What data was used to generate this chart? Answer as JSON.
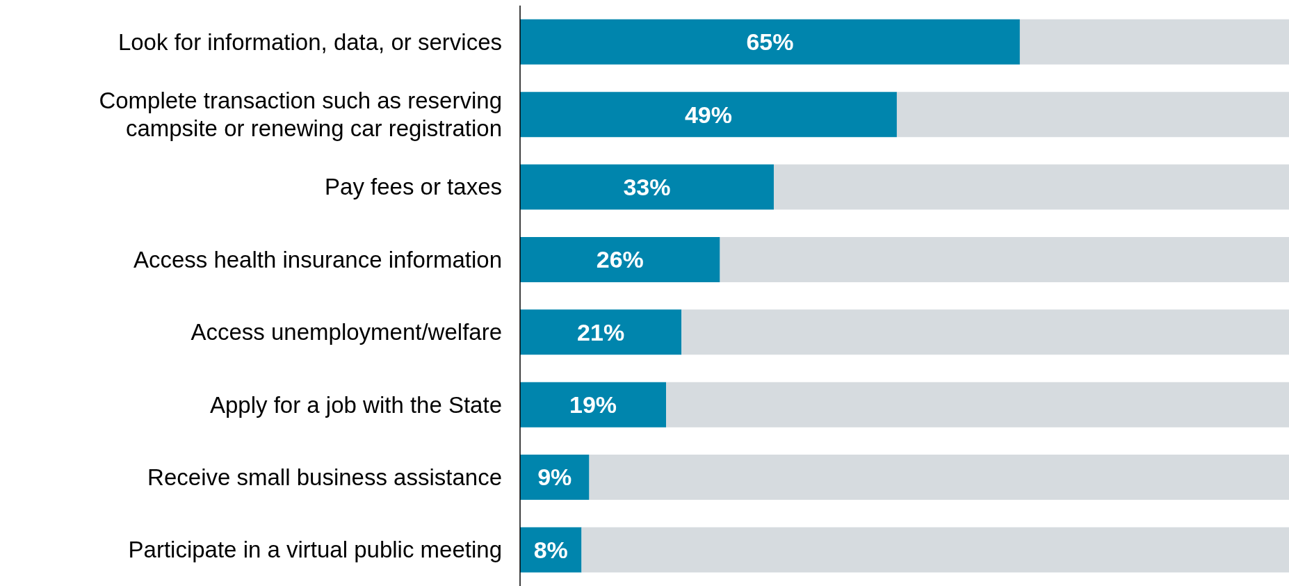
{
  "chart_data": {
    "type": "bar",
    "orientation": "horizontal",
    "stacked": true,
    "categories": [
      "Look for information, data, or services",
      "Complete transaction such as reserving campsite or renewing car registration",
      "Pay fees or taxes",
      "Access health insurance information",
      "Access unemployment/welfare",
      "Apply for a job with the State",
      "Receive small business assistance",
      "Participate in a virtual public meeting"
    ],
    "series": [
      {
        "color": "#0085ad",
        "values": [
          65,
          49,
          33,
          26,
          21,
          19,
          9,
          8
        ],
        "value_labels": [
          "65%",
          "49%",
          "33%",
          "26%",
          "21%",
          "19%",
          "9%",
          "8%"
        ]
      },
      {
        "color": "#d6dbdf",
        "values": [
          35,
          51,
          67,
          74,
          79,
          81,
          91,
          92
        ]
      }
    ],
    "xlim": [
      0,
      100
    ],
    "tick_labels": "y",
    "grid": false,
    "legend": false
  }
}
